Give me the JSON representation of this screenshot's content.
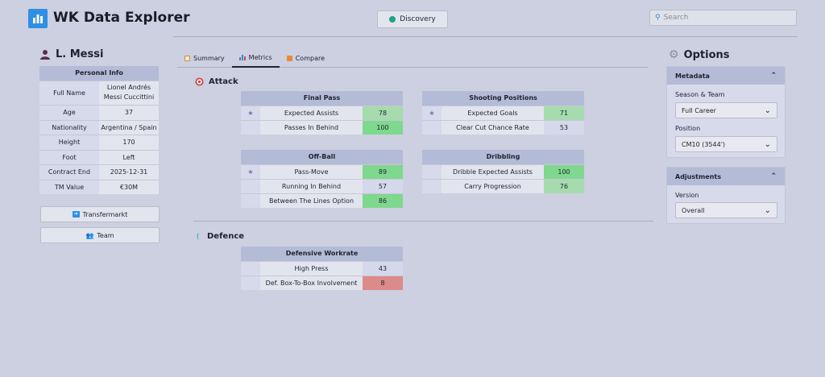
{
  "app": {
    "title": "WK Data Explorer",
    "discovery_label": "Discovery",
    "search_placeholder": "Search"
  },
  "player": {
    "name": "L. Messi",
    "info_header": "Personal Info",
    "info": [
      {
        "key": "Full Name",
        "value": "Lionel Andrés Messi Cuccittini"
      },
      {
        "key": "Age",
        "value": "37"
      },
      {
        "key": "Nationality",
        "value": "Argentina / Spain"
      },
      {
        "key": "Height",
        "value": "170"
      },
      {
        "key": "Foot",
        "value": "Left"
      },
      {
        "key": "Contract End",
        "value": "2025-12-31"
      },
      {
        "key": "TM Value",
        "value": "€30M"
      }
    ],
    "transfermarkt_label": "Transfermarkt",
    "team_label": "Team"
  },
  "tabs": [
    {
      "label": "Summary",
      "icon": "summary-icon"
    },
    {
      "label": "Metrics",
      "icon": "bar-chart-icon"
    },
    {
      "label": "Compare",
      "icon": "compare-icon"
    }
  ],
  "attack": {
    "title": "Attack",
    "final_pass": {
      "title": "Final Pass",
      "rows": [
        {
          "star": "★",
          "name": "Expected Assists",
          "value": "78",
          "color": "#a5dbad"
        },
        {
          "star": "",
          "name": "Passes In Behind",
          "value": "100",
          "color": "#7ed88e"
        }
      ]
    },
    "shooting": {
      "title": "Shooting Positions",
      "rows": [
        {
          "star": "★",
          "name": "Expected Goals",
          "value": "71",
          "color": "#a5dbad"
        },
        {
          "star": "",
          "name": "Clear Cut Chance Rate",
          "value": "53",
          "color": "#d4d8ea"
        }
      ]
    },
    "off_ball": {
      "title": "Off-Ball",
      "rows": [
        {
          "star": "★",
          "name": "Pass-Move",
          "value": "89",
          "color": "#7ed88e"
        },
        {
          "star": "",
          "name": "Running In Behind",
          "value": "57",
          "color": "#d4d8ea"
        },
        {
          "star": "",
          "name": "Between The Lines Option",
          "value": "86",
          "color": "#7ed88e"
        }
      ]
    },
    "dribbling": {
      "title": "Dribbling",
      "rows": [
        {
          "star": "",
          "name": "Dribble Expected Assists",
          "value": "100",
          "color": "#7ed88e"
        },
        {
          "star": "",
          "name": "Carry Progression",
          "value": "76",
          "color": "#a5dbad"
        }
      ]
    }
  },
  "defence": {
    "title": "Defence",
    "workrate": {
      "title": "Defensive Workrate",
      "rows": [
        {
          "star": "",
          "name": "High Press",
          "value": "43",
          "color": "#d4d8ea"
        },
        {
          "star": "",
          "name": "Def. Box-To-Box Involvement",
          "value": "8",
          "color": "#dd8a8a"
        }
      ]
    }
  },
  "options": {
    "title": "Options",
    "metadata_header": "Metadata",
    "season_label": "Season & Team",
    "season_value": "Full Career",
    "position_label": "Position",
    "position_value": "CM10 (3544')",
    "adjustments_header": "Adjustments",
    "version_label": "Version",
    "version_value": "Overall"
  }
}
